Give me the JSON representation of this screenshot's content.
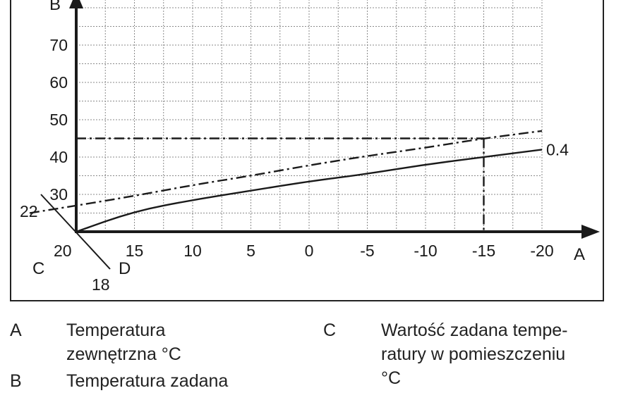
{
  "chart_data": {
    "type": "line",
    "x_ticks": [
      "15",
      "10",
      "5",
      "0",
      "-5",
      "-10",
      "-15",
      "-20"
    ],
    "x_tick_values": [
      15,
      10,
      5,
      0,
      -5,
      -10,
      -15,
      -20
    ],
    "x_origin_label": "20",
    "y_ticks": [
      "30",
      "40",
      "50",
      "60",
      "70"
    ],
    "y_tick_values": [
      30,
      40,
      50,
      60,
      70
    ],
    "xlim": [
      20,
      -20
    ],
    "ylim": [
      20,
      80
    ],
    "x_axis_letter": "A",
    "y_axis_letter": "B",
    "grid": true,
    "series": [
      {
        "name": "0.4",
        "style": "solid",
        "x": [
          20,
          15,
          10,
          5,
          0,
          -5,
          -10,
          -15,
          -20
        ],
        "y": [
          20,
          25.5,
          28.5,
          31,
          33.5,
          35.5,
          38,
          40,
          42
        ]
      },
      {
        "style": "dash-dot",
        "x": [
          24,
          20,
          15,
          10,
          5,
          0,
          -5,
          -10,
          -15,
          -20
        ],
        "y": [
          25,
          27,
          29.6,
          32.5,
          35,
          37.8,
          40.3,
          42.5,
          45,
          47
        ]
      }
    ],
    "reference_lines": {
      "style": "dash-dot",
      "y": 45,
      "x": -15
    },
    "room_scale": {
      "letter_c": "C",
      "letter_d": "D",
      "labels": [
        "22",
        "18"
      ]
    }
  },
  "legend": [
    {
      "key": "A",
      "text": "Temperatura\nzewnętrzna °C"
    },
    {
      "key": "B",
      "text": "Temperatura zadana"
    },
    {
      "key": "C",
      "text": "Wartość zadana tempe-\nratury w pomieszczeniu\n°C"
    }
  ]
}
